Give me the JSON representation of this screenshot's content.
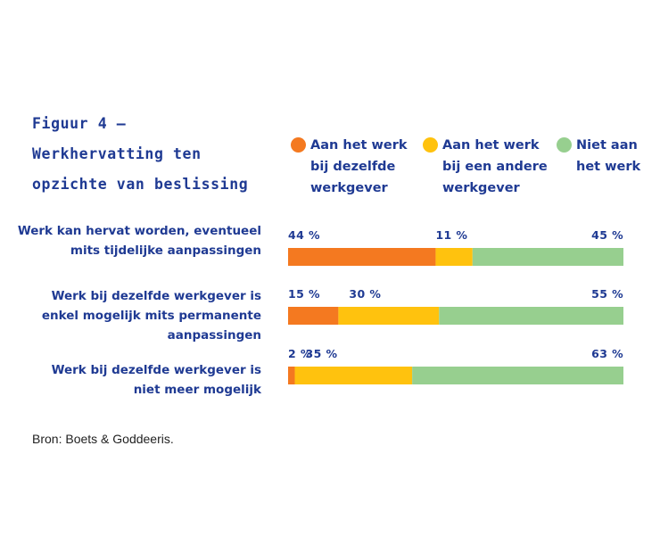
{
  "title_lines": [
    "Figuur 4 –",
    "Werkhervatting ten",
    "opzichte van beslissing"
  ],
  "source": "Bron: Boets & Goddeeris.",
  "chart_data": {
    "type": "bar",
    "orientation": "horizontal",
    "stacked": true,
    "title": "Figuur 4 – Werkhervatting ten opzichte van beslissing",
    "categories": [
      "Werk kan hervat worden, eventueel mits tijdelijke aanpassingen",
      "Werk bij dezelfde werkgever is enkel mogelijk mits permanente aanpassingen",
      "Werk bij dezelfde werkgever is niet meer mogelijk"
    ],
    "category_lines": [
      [
        "Werk kan hervat worden, eventueel",
        "mits tijdelijke aanpassingen"
      ],
      [
        "Werk bij dezelfde werkgever is",
        "enkel mogelijk mits permanente",
        "aanpassingen"
      ],
      [
        "Werk bij dezelfde werkgever is",
        "niet meer mogelijk"
      ]
    ],
    "series": [
      {
        "name": "Aan het werk bij dezelfde werkgever",
        "name_lines": [
          "Aan het werk",
          "bij dezelfde",
          "werkgever"
        ],
        "color": "#f47920",
        "values": [
          44,
          15,
          2
        ]
      },
      {
        "name": "Aan het werk bij een andere werkgever",
        "name_lines": [
          "Aan het werk",
          "bij een andere",
          "werkgever"
        ],
        "color": "#ffc20e",
        "values": [
          11,
          30,
          35
        ]
      },
      {
        "name": "Niet aan het werk",
        "name_lines": [
          "Niet aan",
          "het werk"
        ],
        "color": "#97cf8f",
        "values": [
          45,
          55,
          63
        ]
      }
    ],
    "value_labels": [
      [
        "44 %",
        "11 %",
        "45 %"
      ],
      [
        "15 %",
        "30 %",
        "55 %"
      ],
      [
        "2 %",
        "35 %",
        "63 %"
      ]
    ],
    "unit": "%",
    "xlim": [
      0,
      100
    ],
    "legend_position": "top",
    "grid": false
  }
}
